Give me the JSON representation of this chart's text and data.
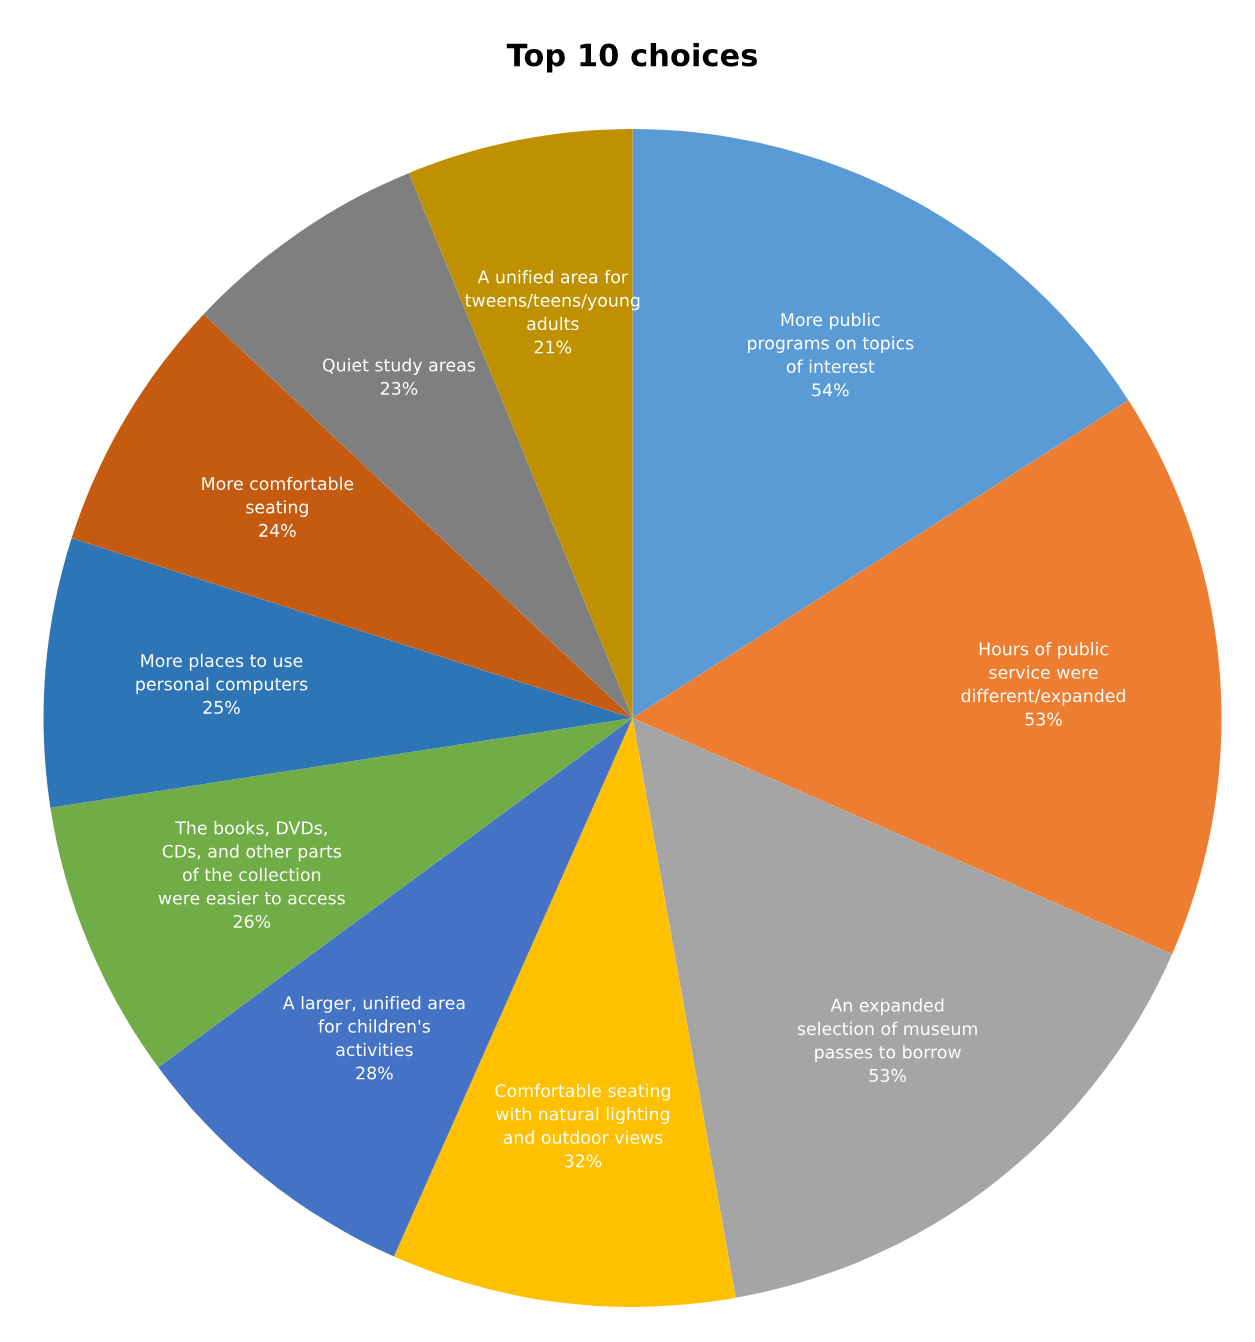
{
  "chart_data": {
    "type": "pie",
    "title": "Top 10 choices",
    "categories": [
      "More public\nprograms on topics\nof interest",
      "Hours of public\nservice were\ndifferent/expanded",
      "An expanded\nselection of museum\npasses to borrow",
      "Comfortable seating\nwith natural lighting\nand outdoor views",
      "A larger, unified area\nfor children's\nactivities",
      "The books, DVDs,\nCDs, and other parts\nof the collection\nwere easier to access",
      "More places to use\npersonal computers",
      "More comfortable\nseating",
      "Quiet study areas",
      "A unified area for\ntweens/teens/young\nadults"
    ],
    "values": [
      54,
      53,
      53,
      32,
      28,
      26,
      25,
      24,
      23,
      21
    ],
    "value_labels": [
      "54%",
      "53%",
      "53%",
      "32%",
      "28%",
      "26%",
      "25%",
      "24%",
      "23%",
      "21%"
    ],
    "colors": [
      "#5b9bd5",
      "#ed7d31",
      "#a5a5a5",
      "#ffc000",
      "#4472c4",
      "#70ad47",
      "#2e75b6",
      "#c55a11",
      "#7f7f7f",
      "#bf9000"
    ],
    "legend": false
  }
}
